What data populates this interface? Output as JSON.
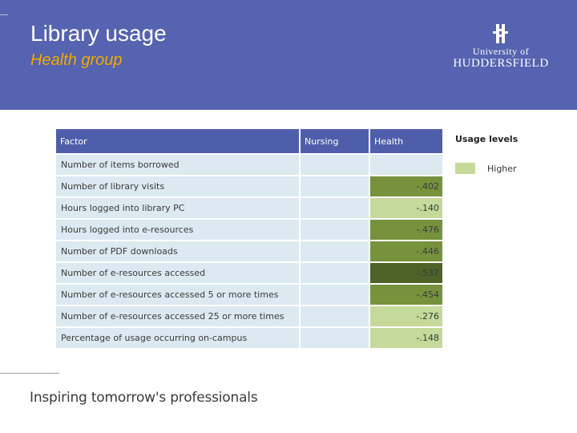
{
  "slide": {
    "title": "Library usage",
    "subtitle": "Health group",
    "tagline": "Inspiring tomorrow's professionals"
  },
  "logo": {
    "line1": "University of",
    "line2": "HUDDERSFIELD"
  },
  "table": {
    "headers": [
      "Factor",
      "Nursing",
      "Health"
    ],
    "rows": [
      {
        "factor": "Number of items borrowed",
        "nursing": "",
        "health": "",
        "health_color": ""
      },
      {
        "factor": "Number of library visits",
        "nursing": "",
        "health": "-.402",
        "health_color": "#76923c"
      },
      {
        "factor": "Hours logged into library PC",
        "nursing": "",
        "health": "-.140",
        "health_color": "#c5d99a"
      },
      {
        "factor": "Hours logged into e-resources",
        "nursing": "",
        "health": "-.476",
        "health_color": "#76923c"
      },
      {
        "factor": "Number of PDF downloads",
        "nursing": "",
        "health": "-.446",
        "health_color": "#76923c"
      },
      {
        "factor": "Number of e-resources accessed",
        "nursing": "",
        "health": "-.537",
        "health_color": "#4f6228"
      },
      {
        "factor": "Number of e-resources accessed 5 or more times",
        "nursing": "",
        "health": "-.454",
        "health_color": "#76923c"
      },
      {
        "factor": "Number of e-resources accessed 25 or more times",
        "nursing": "",
        "health": "-.276",
        "health_color": "#c5d99a"
      },
      {
        "factor": "Percentage of usage occurring on-campus",
        "nursing": "",
        "health": "-.148",
        "health_color": "#c5d99a"
      }
    ]
  },
  "legend": {
    "title": "Usage levels",
    "items": [
      {
        "label": "Higher",
        "color": "#c5d99a"
      }
    ]
  },
  "colors": {
    "header_band": "#5563b0",
    "title_text": "#ffffff",
    "subtitle_text": "#f2a900",
    "table_header": "#4f5eab",
    "table_cell": "#dce9f1"
  }
}
